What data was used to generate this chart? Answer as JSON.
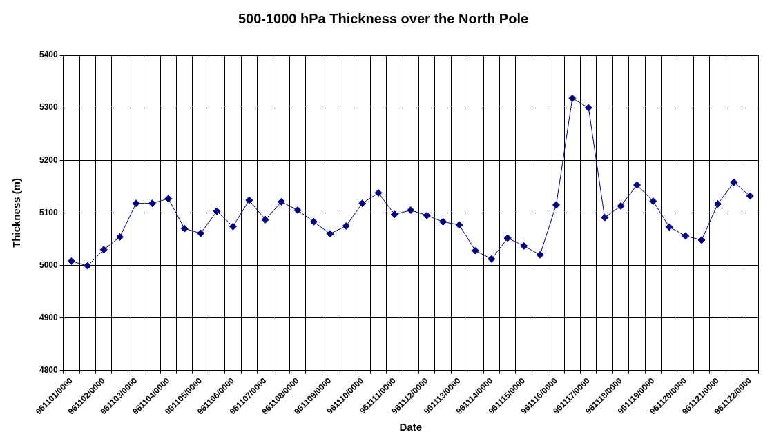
{
  "chart_data": {
    "type": "line",
    "title": "500-1000 hPa Thickness over the North Pole",
    "xlabel": "Date",
    "ylabel": "Thickness (m)",
    "categories": [
      "961101/0000",
      null,
      "961102/0000",
      null,
      "961103/0000",
      null,
      "961104/0000",
      null,
      "961105/0000",
      null,
      "961106/0000",
      null,
      "961107/0000",
      null,
      "961108/0000",
      null,
      "961109/0000",
      null,
      "961110/0000",
      null,
      "961111/0000",
      null,
      "961112/0000",
      null,
      "961113/0000",
      null,
      "961114/0000",
      null,
      "961115/0000",
      null,
      "961116/0000",
      null,
      "961117/0000",
      null,
      "961118/0000",
      null,
      "961119/0000",
      null,
      "961120/0000",
      null,
      "961121/0000",
      null,
      "961122/0000"
    ],
    "series": [
      {
        "color": "#000080",
        "values": [
          5008,
          4999,
          5030,
          5054,
          5118,
          5118,
          5127,
          5070,
          5061,
          5103,
          5074,
          5124,
          5087,
          5121,
          5105,
          5083,
          5060,
          5075,
          5118,
          5138,
          5097,
          5105,
          5095,
          5083,
          5077,
          5028,
          5012,
          5052,
          5037,
          5020,
          5115,
          5318,
          5300,
          5091,
          5113,
          5153,
          5122,
          5073,
          5056,
          5048,
          5117,
          5158,
          5132
        ]
      }
    ],
    "ylim": [
      4800,
      5400
    ],
    "yticks": [
      4800,
      4900,
      5000,
      5100,
      5200,
      5300,
      5400
    ],
    "grid": true,
    "marker": "diamond",
    "line_style": "solid",
    "legend": false
  }
}
